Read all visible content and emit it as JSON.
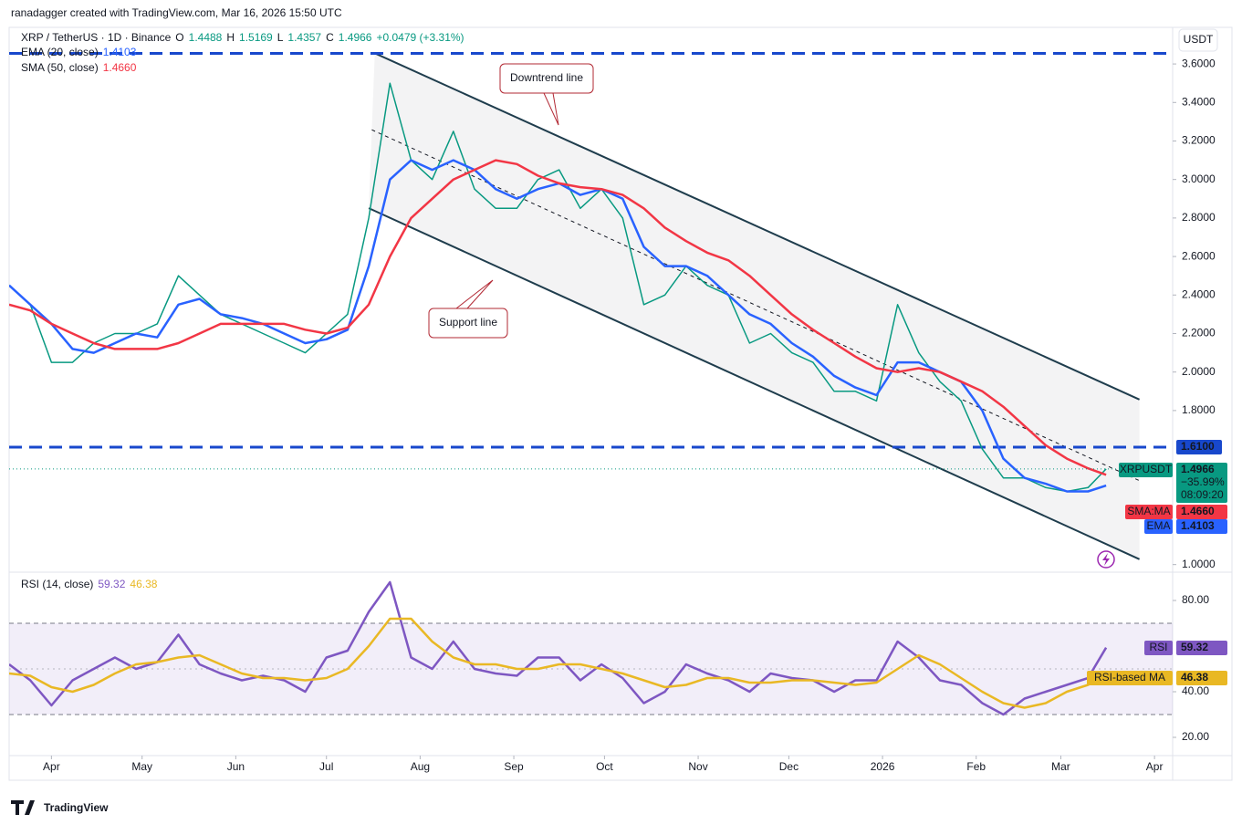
{
  "header": {
    "credit": "ranadagger created with TradingView.com, Mar 16, 2026 15:50 UTC",
    "symbol": "XRP / TetherUS · 1D · Binance",
    "ohlc": [
      {
        "key": "O",
        "value": 1.4488
      },
      {
        "key": "H",
        "value": 1.5169
      },
      {
        "key": "L",
        "value": 1.4357
      },
      {
        "key": "C",
        "value": 1.4966
      }
    ],
    "change": "+0.0479 (+3.31%)"
  },
  "chart_data": [
    {
      "type": "line",
      "y_axis_unit": "USDT",
      "x": [
        0,
        7,
        14,
        21,
        28,
        35,
        42,
        49,
        56,
        63,
        70,
        77,
        84,
        91,
        98,
        105,
        112,
        119,
        126,
        133,
        140,
        147,
        154,
        161,
        168,
        175,
        182,
        189,
        196,
        203,
        210,
        217,
        224,
        231,
        238,
        245,
        252,
        259,
        266,
        273,
        280,
        287,
        294,
        301,
        308,
        315,
        322,
        329,
        336,
        343,
        350,
        357,
        363
      ],
      "xlim": [
        0,
        385
      ],
      "ylim": [
        0.97,
        3.79
      ],
      "yticks": [
        {
          "value": 1.0,
          "label": "1.0000"
        },
        {
          "value": 1.8,
          "label": "1.8000"
        },
        {
          "value": 2.0,
          "label": "2.0000"
        },
        {
          "value": 2.2,
          "label": "2.2000"
        },
        {
          "value": 2.4,
          "label": "2.4000"
        },
        {
          "value": 2.6,
          "label": "2.6000"
        },
        {
          "value": 2.8,
          "label": "2.8000"
        },
        {
          "value": 3.0,
          "label": "3.0000"
        },
        {
          "value": 3.2,
          "label": "3.2000"
        },
        {
          "value": 3.4,
          "label": "3.4000"
        },
        {
          "value": 3.6,
          "label": "3.6000"
        }
      ],
      "grid": false,
      "series": [
        {
          "name": "XRPUSDT",
          "color": "#089981",
          "values": [
            2.45,
            2.35,
            2.05,
            2.05,
            2.15,
            2.2,
            2.2,
            2.25,
            2.5,
            2.4,
            2.3,
            2.25,
            2.2,
            2.15,
            2.1,
            2.2,
            2.3,
            2.8,
            3.5,
            3.1,
            3.0,
            3.25,
            2.95,
            2.85,
            2.85,
            3.0,
            3.05,
            2.85,
            2.95,
            2.8,
            2.35,
            2.4,
            2.55,
            2.45,
            2.4,
            2.15,
            2.2,
            2.1,
            2.05,
            1.9,
            1.9,
            1.85,
            2.35,
            2.1,
            1.95,
            1.85,
            1.6,
            1.45,
            1.45,
            1.4,
            1.38,
            1.4,
            1.4966
          ],
          "tag": {
            "label": "1.4966",
            "change": "−35.99%",
            "countdown": "08:09:20"
          }
        },
        {
          "name": "EMA (20, close)",
          "tag_name": "EMA",
          "color": "#2962ff",
          "values": [
            2.45,
            2.35,
            2.25,
            2.12,
            2.1,
            2.15,
            2.2,
            2.18,
            2.35,
            2.38,
            2.3,
            2.28,
            2.25,
            2.2,
            2.15,
            2.17,
            2.22,
            2.55,
            3.0,
            3.1,
            3.05,
            3.1,
            3.05,
            2.95,
            2.9,
            2.95,
            2.98,
            2.92,
            2.95,
            2.9,
            2.65,
            2.55,
            2.55,
            2.5,
            2.4,
            2.3,
            2.25,
            2.15,
            2.08,
            1.98,
            1.92,
            1.88,
            2.05,
            2.05,
            2.0,
            1.95,
            1.8,
            1.55,
            1.45,
            1.42,
            1.38,
            1.38,
            1.4103
          ],
          "tag": {
            "label": "1.4103"
          }
        },
        {
          "name": "SMA (50, close)",
          "tag_name": "SMA:MA",
          "color": "#f23645",
          "values": [
            2.35,
            2.32,
            2.25,
            2.2,
            2.15,
            2.12,
            2.12,
            2.12,
            2.15,
            2.2,
            2.25,
            2.25,
            2.25,
            2.25,
            2.22,
            2.2,
            2.23,
            2.35,
            2.6,
            2.8,
            2.9,
            3.0,
            3.05,
            3.1,
            3.08,
            3.02,
            2.98,
            2.96,
            2.95,
            2.92,
            2.85,
            2.75,
            2.68,
            2.62,
            2.58,
            2.5,
            2.4,
            2.3,
            2.22,
            2.15,
            2.08,
            2.02,
            2.0,
            2.02,
            2.0,
            1.95,
            1.9,
            1.82,
            1.72,
            1.62,
            1.55,
            1.5,
            1.466
          ],
          "tag": {
            "label": "1.4660"
          }
        }
      ],
      "horizontal_lines": [
        {
          "value": 3.655,
          "color": "#1848cc"
        },
        {
          "value": 1.61,
          "label": "1.6100",
          "color": "#1848cc"
        }
      ],
      "channel": {
        "color": "#1f3d4d",
        "upper": {
          "x": [
            121,
            374
          ],
          "y": [
            3.656,
            1.857
          ]
        },
        "lower": {
          "x": [
            119,
            374
          ],
          "y": [
            2.851,
            1.028
          ]
        },
        "middle": {
          "x": [
            120,
            374
          ],
          "y": [
            3.258,
            1.436
          ]
        }
      },
      "annotations": [
        "Downtrend line",
        "Support line"
      ]
    },
    {
      "type": "line",
      "title": "RSI (14, close)",
      "x": [
        0,
        7,
        14,
        21,
        28,
        35,
        42,
        49,
        56,
        63,
        70,
        77,
        84,
        91,
        98,
        105,
        112,
        119,
        126,
        133,
        140,
        147,
        154,
        161,
        168,
        175,
        182,
        189,
        196,
        203,
        210,
        217,
        224,
        231,
        238,
        245,
        252,
        259,
        266,
        273,
        280,
        287,
        294,
        301,
        308,
        315,
        322,
        329,
        336,
        343,
        350,
        357,
        363
      ],
      "xlim": [
        0,
        385
      ],
      "xticks": [
        {
          "value": 14,
          "label": "Apr"
        },
        {
          "value": 44,
          "label": "May"
        },
        {
          "value": 75,
          "label": "Jun"
        },
        {
          "value": 105,
          "label": "Jul"
        },
        {
          "value": 136,
          "label": "Aug"
        },
        {
          "value": 167,
          "label": "Sep"
        },
        {
          "value": 197,
          "label": "Oct"
        },
        {
          "value": 228,
          "label": "Nov"
        },
        {
          "value": 258,
          "label": "Dec"
        },
        {
          "value": 289,
          "label": "2026"
        },
        {
          "value": 320,
          "label": "Feb"
        },
        {
          "value": 348,
          "label": "Mar"
        },
        {
          "value": 379,
          "label": "Apr"
        }
      ],
      "ylim": [
        12,
        92
      ],
      "yticks": [
        {
          "value": 80,
          "label": "80.00"
        },
        {
          "value": 40,
          "label": "40.00"
        },
        {
          "value": 20,
          "label": "20.00"
        }
      ],
      "bands": [
        30,
        70
      ],
      "midline": 50,
      "series": [
        {
          "name": "RSI",
          "color": "#7e57c2",
          "values": [
            52,
            45,
            34,
            45,
            50,
            55,
            50,
            53,
            65,
            52,
            48,
            45,
            47,
            45,
            40,
            55,
            58,
            75,
            88,
            55,
            50,
            62,
            50,
            48,
            47,
            55,
            55,
            45,
            52,
            46,
            35,
            40,
            52,
            48,
            45,
            40,
            48,
            46,
            45,
            40,
            45,
            45,
            62,
            55,
            45,
            43,
            35,
            30,
            37,
            40,
            43,
            46,
            59.32
          ],
          "tag": {
            "label": "59.32"
          }
        },
        {
          "name": "RSI-based MA",
          "color": "#e9b824",
          "values": [
            48,
            47,
            42,
            40,
            43,
            48,
            52,
            53,
            55,
            56,
            52,
            48,
            46,
            46,
            45,
            46,
            50,
            60,
            72,
            72,
            62,
            55,
            52,
            52,
            50,
            50,
            52,
            52,
            50,
            48,
            45,
            42,
            43,
            46,
            46,
            44,
            44,
            45,
            45,
            44,
            43,
            44,
            50,
            56,
            52,
            46,
            40,
            35,
            33,
            35,
            40,
            43,
            46.38
          ],
          "tag": {
            "label": "46.38"
          }
        }
      ]
    }
  ],
  "footer": {
    "logo": "TradingView"
  }
}
